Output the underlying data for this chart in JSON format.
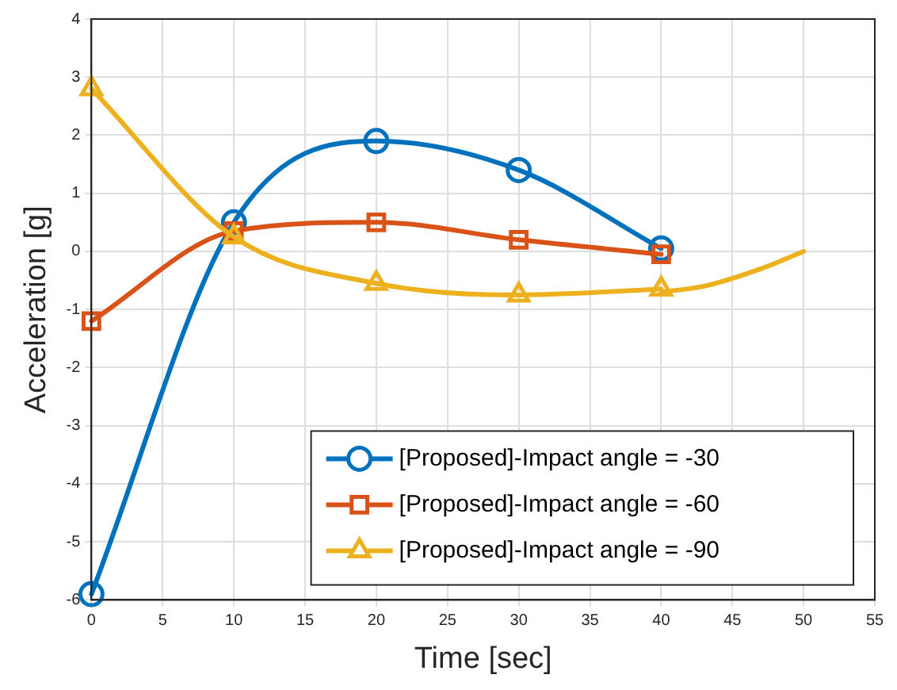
{
  "chart_data": {
    "type": "line",
    "xlabel": "Time [sec]",
    "ylabel": "Acceleration [g]",
    "xlim": [
      0,
      55
    ],
    "xticks": [
      0,
      5,
      10,
      15,
      20,
      25,
      30,
      35,
      40,
      45,
      50,
      55
    ],
    "ylim": [
      -6,
      4
    ],
    "yticks": [
      -6,
      -5,
      -4,
      -3,
      -2,
      -1,
      0,
      1,
      2,
      3,
      4
    ],
    "grid": true,
    "legend": "bottom right",
    "series": [
      {
        "name": "[Proposed]-Impact angle = -30",
        "color": "#0072bd",
        "marker": "circle",
        "x": [
          0,
          10,
          20,
          30,
          40
        ],
        "values": [
          -5.9,
          0.5,
          1.9,
          1.4,
          0.05
        ]
      },
      {
        "name": "[Proposed]-Impact angle = -60",
        "color": "#d95319",
        "marker": "square",
        "x": [
          0,
          10,
          20,
          30,
          40
        ],
        "values": [
          -1.2,
          0.35,
          0.5,
          0.2,
          -0.05
        ]
      },
      {
        "name": "[Proposed]-Impact angle = -90",
        "color": "#edb120",
        "marker": "triangle",
        "x": [
          0,
          10,
          20,
          30,
          40
        ],
        "values": [
          2.8,
          0.25,
          -0.55,
          -0.75,
          -0.65
        ]
      },
      {
        "color": "#edb120",
        "marker": "none",
        "x": [
          40,
          43,
          47,
          50
        ],
        "values": [
          -0.7,
          -0.6,
          -0.3,
          0
        ]
      }
    ]
  }
}
